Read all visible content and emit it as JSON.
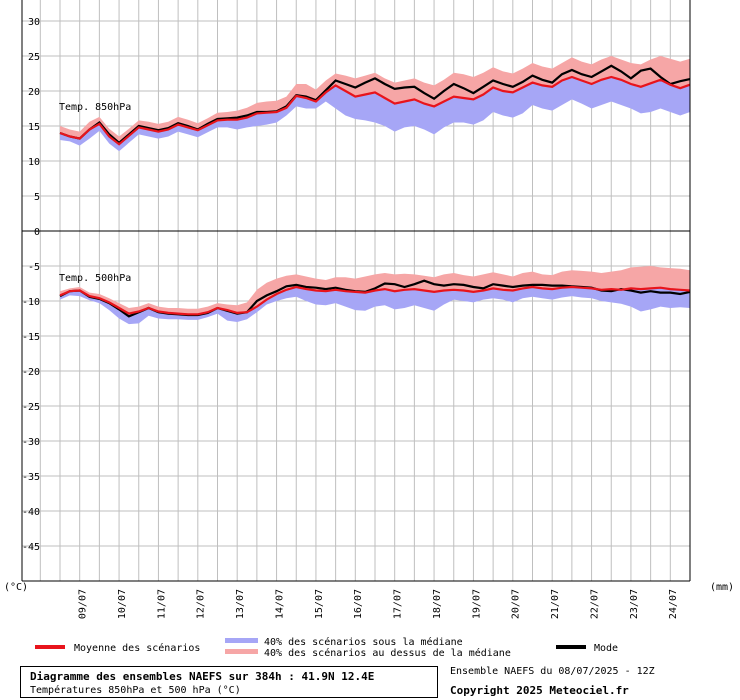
{
  "chart_data": {
    "type": "area",
    "title": "Diagramme des ensembles NAEFS sur 384h : 41.9N 12.4E",
    "subtitle": "Températures 850hPa et 500 hPa (°C)",
    "left_unit": "(°C)",
    "right_unit": "(mm)",
    "x_tick_labels": [
      "09/07",
      "10/07",
      "11/07",
      "12/07",
      "13/07",
      "14/07",
      "15/07",
      "16/07",
      "17/07",
      "18/07",
      "19/07",
      "20/07",
      "21/07",
      "22/07",
      "23/07",
      "24/07"
    ],
    "colors": {
      "mean": "#e8141c",
      "below": "#a6a6f6",
      "above": "#f6a6a6",
      "mode": "#000000",
      "grid": "#bfbfbf"
    },
    "legend": {
      "mean": "Moyenne des scénarios",
      "below": "40% des scénarios sous la médiane",
      "above": "40% des scénarios au dessus de la médiane",
      "mode": "Mode"
    },
    "x_hours": [
      0,
      6,
      12,
      18,
      24,
      30,
      36,
      42,
      48,
      54,
      60,
      66,
      72,
      78,
      84,
      90,
      96,
      102,
      108,
      114,
      120,
      126,
      132,
      138,
      144,
      150,
      156,
      162,
      168,
      174,
      180,
      186,
      192,
      198,
      204,
      210,
      216,
      222,
      228,
      234,
      240,
      246,
      252,
      258,
      264,
      270,
      276,
      282,
      288,
      294,
      300,
      306,
      312,
      318,
      324,
      330,
      336,
      342,
      348,
      354,
      360,
      366,
      372,
      378,
      384
    ],
    "panels": [
      {
        "label": "Temp. 850hPa",
        "ylim": [
          0,
          30
        ],
        "yticks": [
          30,
          25,
          20,
          15,
          10,
          5,
          0
        ],
        "mean": [
          14,
          13.5,
          13.2,
          14.5,
          15.3,
          13.5,
          12.4,
          13.6,
          14.8,
          14.5,
          14.2,
          14.5,
          15.2,
          14.8,
          14.4,
          15.1,
          15.8,
          15.9,
          15.9,
          16.2,
          16.8,
          16.9,
          17.0,
          17.6,
          19.3,
          19.0,
          18.5,
          19.8,
          20.8,
          20.0,
          19.2,
          19.5,
          19.8,
          19.0,
          18.2,
          18.5,
          18.8,
          18.2,
          17.8,
          18.5,
          19.2,
          19.0,
          18.8,
          19.5,
          20.5,
          20.0,
          19.8,
          20.5,
          21.2,
          20.8,
          20.6,
          21.5,
          22.0,
          21.5,
          21.0,
          21.6,
          22.0,
          21.6,
          21.0,
          20.6,
          21.1,
          21.6,
          20.9,
          20.4,
          20.9
        ],
        "mode": [
          14,
          13.5,
          13.2,
          14.5,
          15.5,
          13.8,
          12.6,
          13.8,
          15.0,
          14.7,
          14.4,
          14.7,
          15.4,
          15.0,
          14.5,
          15.3,
          16.0,
          16.1,
          16.2,
          16.5,
          17.0,
          17.0,
          17.1,
          17.8,
          19.4,
          19.2,
          18.7,
          20.1,
          21.5,
          21.0,
          20.5,
          21.2,
          21.8,
          21.0,
          20.3,
          20.5,
          20.6,
          19.7,
          18.9,
          20.0,
          21.0,
          20.4,
          19.7,
          20.6,
          21.5,
          21.0,
          20.6,
          21.3,
          22.2,
          21.6,
          21.2,
          22.4,
          23.0,
          22.4,
          22.0,
          22.8,
          23.6,
          22.8,
          21.8,
          22.9,
          23.2,
          22.0,
          21.0,
          21.4,
          21.7
        ],
        "low": [
          13,
          12.8,
          12.2,
          13.2,
          14.3,
          12.5,
          11.4,
          12.6,
          13.8,
          13.5,
          13.2,
          13.5,
          14.2,
          13.8,
          13.4,
          14.1,
          14.8,
          14.8,
          14.5,
          14.8,
          15.0,
          15.2,
          15.5,
          16.5,
          17.8,
          17.5,
          17.5,
          18.5,
          17.5,
          16.5,
          16.0,
          15.8,
          15.5,
          15.0,
          14.2,
          14.8,
          15.0,
          14.5,
          13.8,
          14.8,
          15.5,
          15.5,
          15.2,
          15.8,
          17.0,
          16.5,
          16.2,
          16.8,
          18.0,
          17.5,
          17.2,
          18.0,
          18.8,
          18.2,
          17.5,
          18.0,
          18.5,
          18.0,
          17.5,
          16.8,
          17.0,
          17.5,
          17.0,
          16.5,
          17.0
        ],
        "high": [
          15,
          14.5,
          14.2,
          15.6,
          16.3,
          14.6,
          13.5,
          14.6,
          15.8,
          15.6,
          15.3,
          15.6,
          16.3,
          15.9,
          15.4,
          16.1,
          16.9,
          17.0,
          17.2,
          17.6,
          18.3,
          18.5,
          18.6,
          19.2,
          21.0,
          21.0,
          20.2,
          21.5,
          22.5,
          22.2,
          21.8,
          22.2,
          22.6,
          21.8,
          21.2,
          21.5,
          21.8,
          21.2,
          20.8,
          21.6,
          22.6,
          22.4,
          22.0,
          22.6,
          23.4,
          22.8,
          22.5,
          23.2,
          24.0,
          23.5,
          23.2,
          24.0,
          24.8,
          24.2,
          23.8,
          24.5,
          25.0,
          24.5,
          24.0,
          23.8,
          24.5,
          25.0,
          24.6,
          24.2,
          24.6
        ]
      },
      {
        "label": "Temp. 500hPa",
        "ylim": [
          -50,
          0
        ],
        "yticks": [
          -5,
          -10,
          -15,
          -20,
          -25,
          -30,
          -35,
          -40,
          -45
        ],
        "mean": [
          -9.2,
          -8.6,
          -8.5,
          -9.3,
          -9.6,
          -10.2,
          -11.0,
          -11.8,
          -11.5,
          -11.0,
          -11.5,
          -11.7,
          -11.8,
          -11.9,
          -11.9,
          -11.6,
          -11.0,
          -11.3,
          -11.7,
          -11.6,
          -10.8,
          -9.8,
          -9.0,
          -8.4,
          -8.0,
          -8.3,
          -8.5,
          -8.6,
          -8.4,
          -8.6,
          -8.7,
          -8.8,
          -8.5,
          -8.3,
          -8.6,
          -8.4,
          -8.3,
          -8.5,
          -8.7,
          -8.5,
          -8.4,
          -8.5,
          -8.7,
          -8.5,
          -8.2,
          -8.4,
          -8.5,
          -8.2,
          -8.0,
          -8.2,
          -8.3,
          -8.1,
          -8.0,
          -8.1,
          -8.2,
          -8.4,
          -8.3,
          -8.4,
          -8.2,
          -8.3,
          -8.2,
          -8.1,
          -8.3,
          -8.4,
          -8.5
        ],
        "mode": [
          -9.3,
          -8.6,
          -8.5,
          -9.4,
          -9.7,
          -10.3,
          -11.2,
          -12.2,
          -11.6,
          -11.0,
          -11.6,
          -11.8,
          -11.9,
          -12.0,
          -12.0,
          -11.7,
          -11.0,
          -11.4,
          -11.8,
          -11.6,
          -10.0,
          -9.2,
          -8.6,
          -7.9,
          -7.7,
          -8.0,
          -8.1,
          -8.3,
          -8.1,
          -8.4,
          -8.6,
          -8.7,
          -8.2,
          -7.5,
          -7.6,
          -8.0,
          -7.6,
          -7.1,
          -7.6,
          -7.8,
          -7.6,
          -7.7,
          -8.0,
          -8.2,
          -7.6,
          -7.8,
          -8.0,
          -7.8,
          -7.7,
          -7.7,
          -7.8,
          -7.8,
          -7.9,
          -8.0,
          -8.1,
          -8.5,
          -8.6,
          -8.3,
          -8.5,
          -8.8,
          -8.6,
          -8.8,
          -8.8,
          -9.0,
          -8.7
        ],
        "low": [
          -9.8,
          -9.2,
          -9.3,
          -9.9,
          -10.3,
          -11.3,
          -12.5,
          -13.3,
          -13.2,
          -12.1,
          -12.5,
          -12.6,
          -12.6,
          -12.7,
          -12.7,
          -12.3,
          -11.8,
          -12.8,
          -13.0,
          -12.6,
          -11.6,
          -10.5,
          -10.0,
          -9.6,
          -9.4,
          -10.0,
          -10.5,
          -10.6,
          -10.3,
          -10.8,
          -11.3,
          -11.4,
          -10.8,
          -10.6,
          -11.2,
          -11.0,
          -10.6,
          -11.0,
          -11.4,
          -10.5,
          -9.8,
          -10.0,
          -10.2,
          -9.8,
          -9.6,
          -9.8,
          -10.2,
          -9.6,
          -9.4,
          -9.6,
          -9.8,
          -9.5,
          -9.3,
          -9.5,
          -9.6,
          -10.0,
          -10.2,
          -10.4,
          -10.8,
          -11.5,
          -11.2,
          -10.8,
          -11.0,
          -10.9,
          -11.0
        ],
        "high": [
          -8.6,
          -8.2,
          -8.0,
          -8.8,
          -9.0,
          -9.6,
          -10.3,
          -11.0,
          -10.8,
          -10.3,
          -10.8,
          -11.0,
          -11.0,
          -11.1,
          -11.1,
          -10.8,
          -10.3,
          -10.5,
          -10.6,
          -10.2,
          -8.4,
          -7.4,
          -6.8,
          -6.4,
          -6.2,
          -6.5,
          -6.8,
          -7.0,
          -6.6,
          -6.6,
          -6.8,
          -6.5,
          -6.2,
          -6.0,
          -6.2,
          -6.1,
          -6.2,
          -6.4,
          -6.6,
          -6.2,
          -6.0,
          -6.3,
          -6.5,
          -6.2,
          -5.9,
          -6.2,
          -6.5,
          -6.0,
          -5.8,
          -6.2,
          -6.3,
          -5.8,
          -5.6,
          -5.7,
          -5.8,
          -6.0,
          -5.8,
          -5.6,
          -5.2,
          -5.1,
          -5.0,
          -5.2,
          -5.3,
          -5.4,
          -5.6
        ]
      }
    ]
  },
  "footer": {
    "info_title": "Diagramme des ensembles NAEFS sur 384h : 41.9N 12.4E",
    "info_subtitle": "Températures 850hPa et 500 hPa (°C)",
    "ensemble_run": "Ensemble NAEFS du 08/07/2025 - 12Z",
    "copyright": "Copyright 2025 Meteociel.fr"
  }
}
